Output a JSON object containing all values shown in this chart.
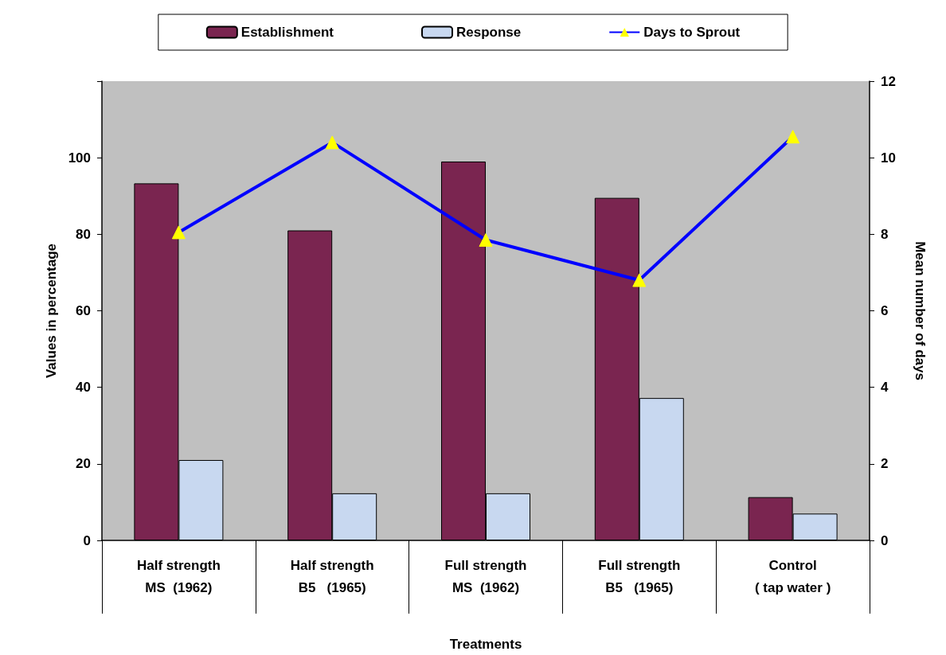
{
  "chart_data": {
    "type": "bar",
    "xlabel": "Treatments",
    "ylabel": "Values in percentage",
    "y2label": "Mean number of days",
    "categories": [
      "Half strength\n\nMS  (1962)",
      "Half strength\n\nB5   (1965)",
      "Full strength\n\nMS  (1962)",
      "Full strength\n\nB5   (1965)",
      "Control\n\n( tap water )"
    ],
    "series": [
      {
        "name": "Establishment",
        "color": "#7a2550",
        "values": [
          93.3,
          81,
          99,
          89.5,
          11.3
        ]
      },
      {
        "name": "Response",
        "color": "#c8d8f0",
        "values": [
          21,
          12.3,
          12.3,
          37.2,
          7
        ]
      },
      {
        "name": "Days to Sprout",
        "type": "line",
        "axis": "y2",
        "color": "#0000ff",
        "marker": "triangle",
        "values": [
          8.05,
          10.4,
          7.85,
          6.8,
          10.55
        ]
      }
    ],
    "ylim": [
      0,
      120
    ],
    "yticks": [
      0,
      20,
      40,
      60,
      80,
      100,
      {
        "value": 120,
        "label": null
      }
    ],
    "y2lim": [
      0,
      12
    ],
    "y2ticks": [
      0,
      2,
      4,
      6,
      8,
      10,
      12
    ],
    "legend": "top",
    "grid": false
  }
}
